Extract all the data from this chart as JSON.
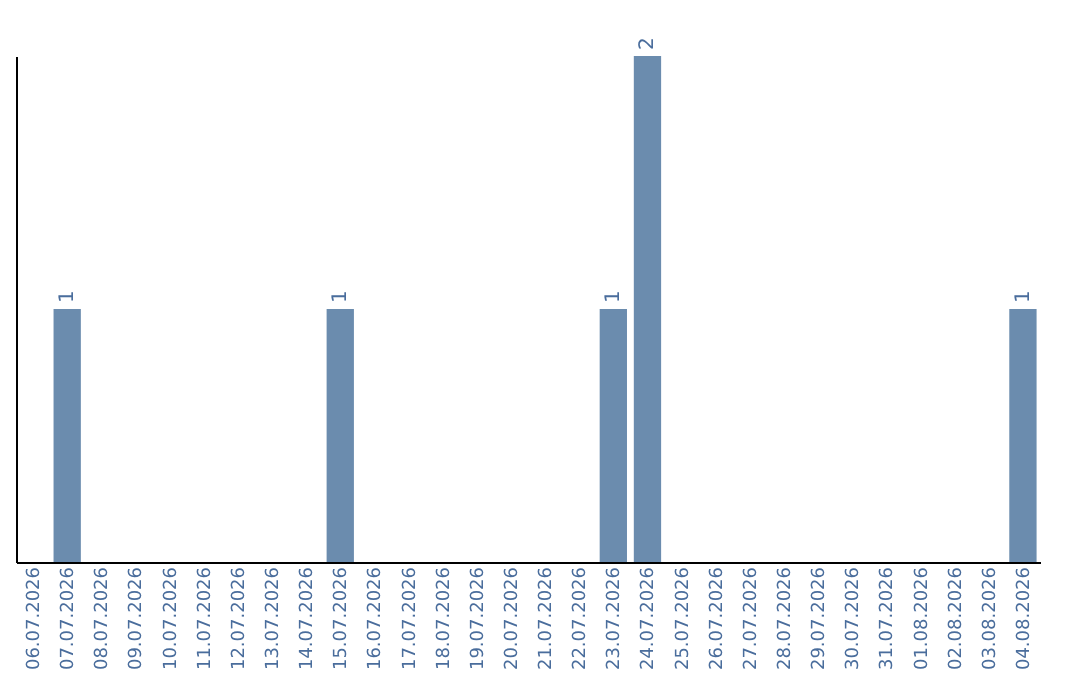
{
  "chart_data": {
    "type": "bar",
    "categories": [
      "06.07.2026",
      "07.07.2026",
      "08.07.2026",
      "09.07.2026",
      "10.07.2026",
      "11.07.2026",
      "12.07.2026",
      "13.07.2026",
      "14.07.2026",
      "15.07.2026",
      "16.07.2026",
      "17.07.2026",
      "18.07.2026",
      "19.07.2026",
      "20.07.2026",
      "21.07.2026",
      "22.07.2026",
      "23.07.2026",
      "24.07.2026",
      "25.07.2026",
      "26.07.2026",
      "27.07.2026",
      "28.07.2026",
      "29.07.2026",
      "30.07.2026",
      "31.07.2026",
      "01.08.2026",
      "02.08.2026",
      "03.08.2026",
      "04.08.2026"
    ],
    "values": [
      0,
      1,
      0,
      0,
      0,
      0,
      0,
      0,
      0,
      1,
      0,
      0,
      0,
      0,
      0,
      0,
      0,
      1,
      2,
      0,
      0,
      0,
      0,
      0,
      0,
      0,
      0,
      0,
      0,
      1
    ],
    "value_labels": [
      null,
      "1",
      null,
      null,
      null,
      null,
      null,
      null,
      null,
      "1",
      null,
      null,
      null,
      null,
      null,
      null,
      null,
      "1",
      "2",
      null,
      null,
      null,
      null,
      null,
      null,
      null,
      null,
      null,
      null,
      "1"
    ],
    "color": "#6b8cae",
    "ylim": [
      0,
      2
    ],
    "tick_labels": "x",
    "grid": false
  }
}
